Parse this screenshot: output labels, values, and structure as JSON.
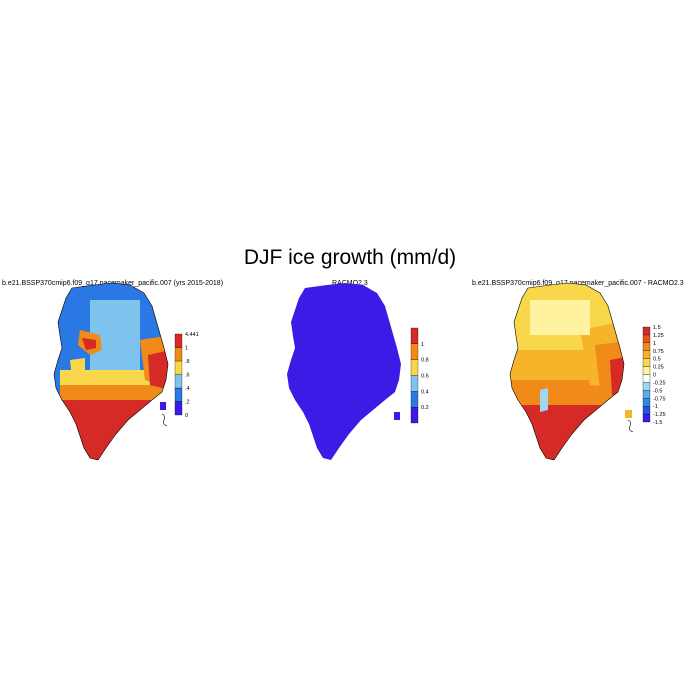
{
  "title": "DJF ice growth (mm/d)",
  "panels": [
    {
      "id": "model",
      "title": "b.e21.BSSP370cmip6.f09_g17.pacemaker_pacific.007 (yrs 2015-2018)",
      "colorbar": {
        "colors": [
          "#3a1ce6",
          "#2a78e3",
          "#7ec3ee",
          "#f8d84a",
          "#f08a18",
          "#d52a26"
        ],
        "labels": [
          "0",
          ".2",
          ".4",
          ".6",
          ".8",
          "1",
          "4.441"
        ]
      }
    },
    {
      "id": "obs",
      "title": "RACMO2.3",
      "colorbar": {
        "colors": [
          "#3a1ce6",
          "#2a78e3",
          "#7ec3ee",
          "#f8d84a",
          "#f08a18",
          "#d52a26"
        ],
        "labels": [
          "0.2",
          "0.4",
          "0.6",
          "0.8",
          "1"
        ]
      }
    },
    {
      "id": "diff",
      "title": "b.e21.BSSP370cmip6.f09_g17.pacemaker_pacific.007 - RACMO2.3",
      "colorbar": {
        "colors": [
          "#3a1ce6",
          "#2255e6",
          "#2a8be3",
          "#55aee8",
          "#9fd6f0",
          "#ffffff",
          "#fff3a0",
          "#f8d84a",
          "#f6b42a",
          "#f08a18",
          "#e5551e",
          "#d52a26"
        ],
        "labels": [
          "1.5",
          "1.25",
          "1",
          "0.75",
          "0.5",
          "0.25",
          "0",
          "-0.25",
          "-0.5",
          "-0.75",
          "-1",
          "-1.25",
          "-1.5"
        ]
      }
    }
  ]
}
